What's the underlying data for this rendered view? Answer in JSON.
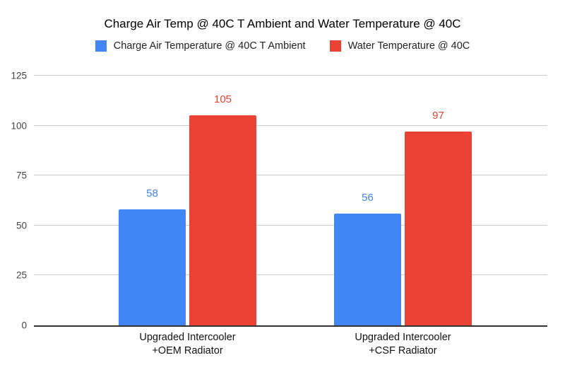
{
  "chart_data": {
    "type": "bar",
    "title": "Charge Air Temp @ 40C T Ambient and Water Temperature @ 40C",
    "categories": [
      "Upgraded Intercooler\n+OEM Radiator",
      "Upgraded Intercooler\n+CSF Radiator"
    ],
    "series": [
      {
        "name": "Charge Air Temperature @ 40C T Ambient",
        "color": "#4285F4",
        "values": [
          58,
          56
        ]
      },
      {
        "name": "Water Temperature @ 40C",
        "color": "#EA4335",
        "values": [
          105,
          97
        ]
      }
    ],
    "yticks": [
      0,
      25,
      50,
      75,
      100,
      125
    ],
    "ylim": [
      0,
      125
    ],
    "grid": true,
    "legend_position": "top",
    "data_labels": true,
    "xlabel": "",
    "ylabel": "",
    "colors": {
      "gridline": "#cccccc",
      "axis_line": "#333333",
      "tick_label": "#444444",
      "category_label": "#111111",
      "title": "#000000",
      "legend_text": "#222222",
      "background": "#ffffff"
    }
  }
}
